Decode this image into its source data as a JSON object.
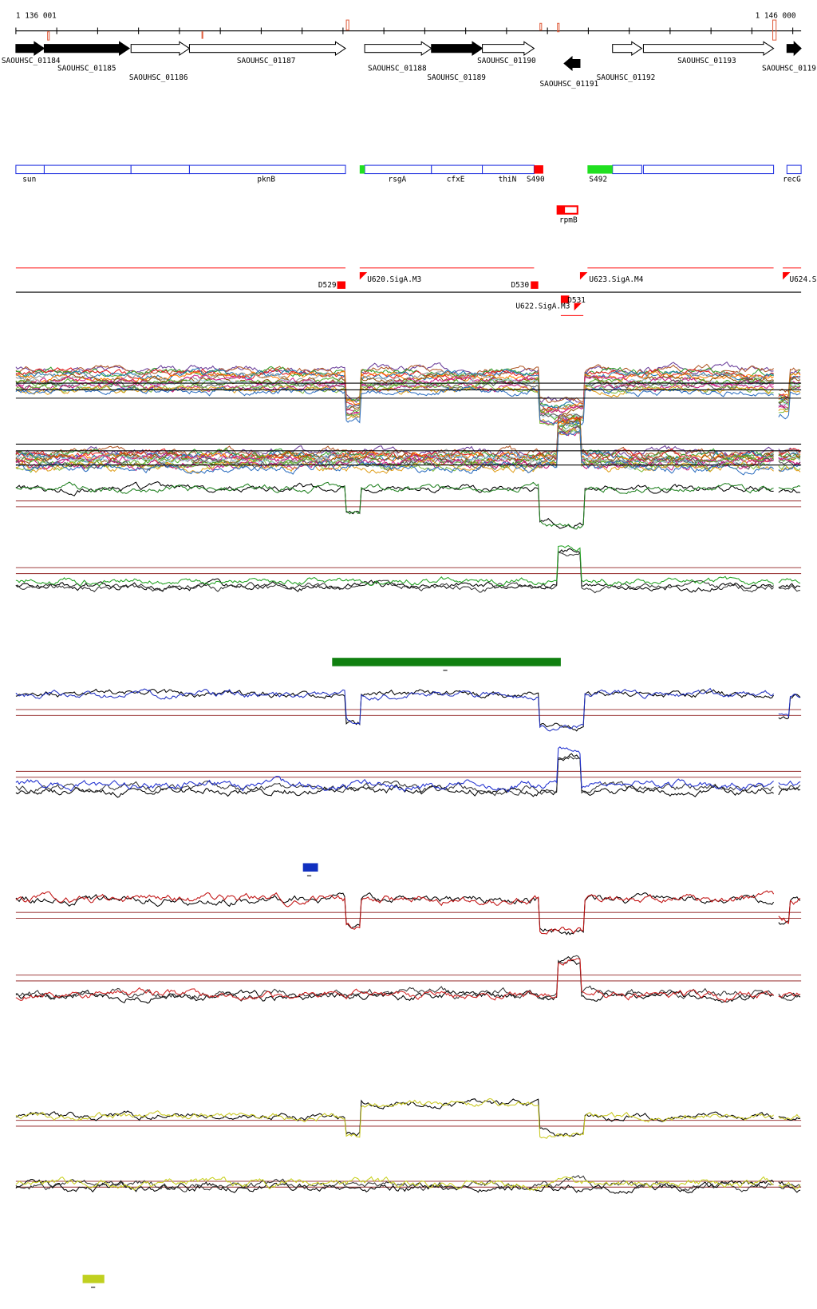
{
  "ruler": {
    "start": "1 136 001",
    "end": "1 146 000"
  },
  "genes": [
    "SAOUHSC_01184",
    "SAOUHSC_01185",
    "SAOUHSC_01186",
    "SAOUHSC_01187",
    "SAOUHSC_01188",
    "SAOUHSC_01189",
    "SAOUHSC_01190",
    "SAOUHSC_01191",
    "SAOUHSC_01192",
    "SAOUHSC_01193",
    "SAOUHSC_0119"
  ],
  "regions": [
    "sun",
    "pknB",
    "rsgA",
    "cfxE",
    "thiN",
    "S490",
    "S492",
    "recG"
  ],
  "operon": "rpmB",
  "promoters": [
    "D529",
    "U620.SigA.M3",
    "D530",
    "D531",
    "U622.SigA.M3",
    "U623.SigA.M4",
    "U624.S"
  ]
}
